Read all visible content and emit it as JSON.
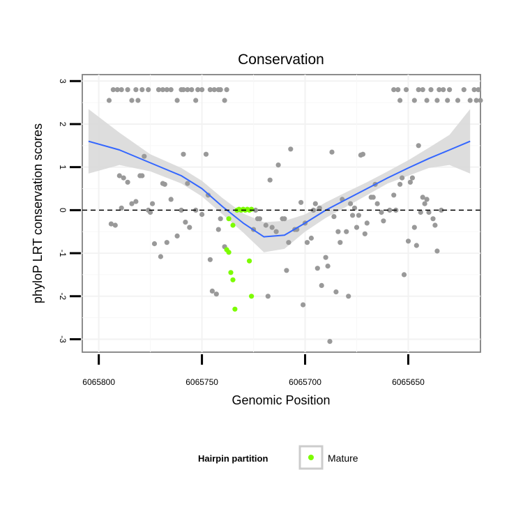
{
  "chart_data": {
    "type": "scatter",
    "title": "Conservation",
    "xlabel": "Genomic Position",
    "ylabel": "phyloP LRT conservation scores",
    "x_reversed": true,
    "xlim": [
      6065808,
      6065615
    ],
    "ylim": [
      -3.3,
      3.15
    ],
    "x_ticks": [
      6065800,
      6065750,
      6065700,
      6065650
    ],
    "x_tick_labels": [
      "6065800",
      "6065750",
      "6065700",
      "6065650"
    ],
    "y_ticks": [
      3,
      2,
      1,
      0,
      -1,
      -2,
      -3
    ],
    "y_tick_labels": [
      "3",
      "2",
      "1",
      "0",
      "-1",
      "-2",
      "-3"
    ],
    "grid": true,
    "reference_line": {
      "y": 0,
      "style": "dashed"
    },
    "legend": {
      "title": "Hairpin partition",
      "position": "bottom",
      "entries": [
        {
          "label": "Mature",
          "color": "#7cfc00"
        }
      ]
    },
    "colors": {
      "other": "#999999",
      "mature": "#7cfc00",
      "smooth": "#3366ff",
      "band": "#d9d9d9"
    },
    "series": [
      {
        "group": "other",
        "points": [
          [
            6065795,
            2.55
          ],
          [
            6065793,
            2.8
          ],
          [
            6065791,
            2.8
          ],
          [
            6065789,
            2.8
          ],
          [
            6065786,
            2.8
          ],
          [
            6065784,
            2.55
          ],
          [
            6065782,
            2.8
          ],
          [
            6065781,
            2.55
          ],
          [
            6065779,
            2.8
          ],
          [
            6065776,
            2.8
          ],
          [
            6065771,
            2.8
          ],
          [
            6065769,
            2.8
          ],
          [
            6065767,
            2.8
          ],
          [
            6065765,
            2.8
          ],
          [
            6065762,
            2.55
          ],
          [
            6065760,
            2.8
          ],
          [
            6065759,
            2.8
          ],
          [
            6065757,
            2.8
          ],
          [
            6065755,
            2.8
          ],
          [
            6065753,
            2.55
          ],
          [
            6065752,
            2.8
          ],
          [
            6065750,
            2.8
          ],
          [
            6065746,
            2.8
          ],
          [
            6065744,
            2.8
          ],
          [
            6065742,
            2.8
          ],
          [
            6065741,
            2.8
          ],
          [
            6065739,
            2.55
          ],
          [
            6065738,
            2.8
          ],
          [
            6065657,
            2.8
          ],
          [
            6065655,
            2.8
          ],
          [
            6065654,
            2.55
          ],
          [
            6065651,
            2.8
          ],
          [
            6065647,
            2.55
          ],
          [
            6065645,
            2.8
          ],
          [
            6065643,
            2.8
          ],
          [
            6065641,
            2.55
          ],
          [
            6065639,
            2.8
          ],
          [
            6065636,
            2.55
          ],
          [
            6065635,
            2.8
          ],
          [
            6065633,
            2.8
          ],
          [
            6065631,
            2.55
          ],
          [
            6065630,
            2.8
          ],
          [
            6065626,
            2.55
          ],
          [
            6065623,
            2.8
          ],
          [
            6065620,
            2.55
          ],
          [
            6065617,
            2.55
          ],
          [
            6065618,
            2.8
          ],
          [
            6065616,
            2.8
          ],
          [
            6065615,
            2.55
          ],
          [
            6065794,
            -0.32
          ],
          [
            6065792,
            -0.35
          ],
          [
            6065790,
            0.8
          ],
          [
            6065789,
            0.05
          ],
          [
            6065788,
            0.75
          ],
          [
            6065786,
            0.65
          ],
          [
            6065784,
            0.15
          ],
          [
            6065782,
            0.2
          ],
          [
            6065780,
            0.8
          ],
          [
            6065779,
            0.8
          ],
          [
            6065778,
            1.25
          ],
          [
            6065776,
            0.0
          ],
          [
            6065775,
            -0.05
          ],
          [
            6065774,
            0.15
          ],
          [
            6065773,
            -0.78
          ],
          [
            6065770,
            -1.08
          ],
          [
            6065769,
            0.62
          ],
          [
            6065768,
            0.6
          ],
          [
            6065767,
            -0.75
          ],
          [
            6065765,
            0.25
          ],
          [
            6065762,
            -0.6
          ],
          [
            6065760,
            0.0
          ],
          [
            6065759,
            1.3
          ],
          [
            6065758,
            -0.28
          ],
          [
            6065757,
            0.62
          ],
          [
            6065756,
            -0.4
          ],
          [
            6065753,
            0.0
          ],
          [
            6065750,
            -0.1
          ],
          [
            6065748,
            1.3
          ],
          [
            6065747,
            0.35
          ],
          [
            6065746,
            -1.15
          ],
          [
            6065745,
            -1.88
          ],
          [
            6065743,
            -1.95
          ],
          [
            6065742,
            -0.45
          ],
          [
            6065741,
            -0.2
          ],
          [
            6065739,
            -0.85
          ],
          [
            6065725,
            -0.45
          ],
          [
            6065724,
            0.0
          ],
          [
            6065723,
            -0.2
          ],
          [
            6065722,
            -0.2
          ],
          [
            6065719,
            -0.35
          ],
          [
            6065718,
            -2.0
          ],
          [
            6065717,
            0.7
          ],
          [
            6065716,
            -0.4
          ],
          [
            6065714,
            -0.5
          ],
          [
            6065713,
            1.05
          ],
          [
            6065711,
            -0.2
          ],
          [
            6065710,
            -0.2
          ],
          [
            6065709,
            -1.4
          ],
          [
            6065708,
            -0.75
          ],
          [
            6065707,
            1.42
          ],
          [
            6065705,
            -0.45
          ],
          [
            6065704,
            -0.45
          ],
          [
            6065702,
            0.18
          ],
          [
            6065701,
            -2.2
          ],
          [
            6065700,
            -0.3
          ],
          [
            6065699,
            -0.75
          ],
          [
            6065697,
            -0.65
          ],
          [
            6065696,
            0.0
          ],
          [
            6065695,
            0.15
          ],
          [
            6065694,
            -1.35
          ],
          [
            6065693,
            0.05
          ],
          [
            6065692,
            -1.75
          ],
          [
            6065690,
            -1.1
          ],
          [
            6065689,
            -1.3
          ],
          [
            6065688,
            -3.05
          ],
          [
            6065687,
            1.35
          ],
          [
            6065686,
            -0.15
          ],
          [
            6065685,
            -1.9
          ],
          [
            6065684,
            -0.5
          ],
          [
            6065683,
            -0.75
          ],
          [
            6065682,
            0.25
          ],
          [
            6065680,
            -0.5
          ],
          [
            6065679,
            -2.0
          ],
          [
            6065678,
            0.15
          ],
          [
            6065677,
            -0.12
          ],
          [
            6065676,
            0.05
          ],
          [
            6065675,
            -0.4
          ],
          [
            6065674,
            -0.12
          ],
          [
            6065673,
            1.28
          ],
          [
            6065672,
            1.3
          ],
          [
            6065671,
            -0.55
          ],
          [
            6065670,
            -0.3
          ],
          [
            6065668,
            0.3
          ],
          [
            6065667,
            0.3
          ],
          [
            6065666,
            0.6
          ],
          [
            6065665,
            0.15
          ],
          [
            6065663,
            -0.05
          ],
          [
            6065662,
            -0.25
          ],
          [
            6065659,
            0.0
          ],
          [
            6065657,
            0.35
          ],
          [
            6065656,
            0.0
          ],
          [
            6065654,
            0.6
          ],
          [
            6065653,
            0.75
          ],
          [
            6065652,
            -1.5
          ],
          [
            6065650,
            -0.72
          ],
          [
            6065649,
            0.65
          ],
          [
            6065648,
            0.75
          ],
          [
            6065647,
            -0.4
          ],
          [
            6065646,
            -0.82
          ],
          [
            6065645,
            1.5
          ],
          [
            6065644,
            -0.05
          ],
          [
            6065643,
            0.3
          ],
          [
            6065642,
            0.15
          ],
          [
            6065641,
            0.25
          ],
          [
            6065640,
            -0.05
          ],
          [
            6065638,
            -0.2
          ],
          [
            6065637,
            -0.35
          ],
          [
            6065636,
            -0.95
          ],
          [
            6065634,
            0.0
          ]
        ]
      },
      {
        "group": "mature",
        "points": [
          [
            6065737,
            -0.2
          ],
          [
            6065735,
            -0.35
          ],
          [
            6065733,
            0.0
          ],
          [
            6065732,
            0.02
          ],
          [
            6065731,
            0.0
          ],
          [
            6065730,
            0.02
          ],
          [
            6065729,
            0.0
          ],
          [
            6065728,
            0.02
          ],
          [
            6065727,
            0.0
          ],
          [
            6065726,
            0.02
          ],
          [
            6065738,
            -0.92
          ],
          [
            6065737,
            -0.98
          ],
          [
            6065736,
            -1.45
          ],
          [
            6065735,
            -1.62
          ],
          [
            6065734,
            -2.3
          ],
          [
            6065727,
            -1.18
          ],
          [
            6065726,
            -2.0
          ]
        ]
      }
    ],
    "smooth_line": {
      "x": [
        6065805,
        6065790,
        6065775,
        6065760,
        6065750,
        6065740,
        6065730,
        6065720,
        6065710,
        6065700,
        6065690,
        6065680,
        6065670,
        6065660,
        6065650,
        6065640,
        6065630,
        6065620
      ],
      "y": [
        1.6,
        1.4,
        1.1,
        0.8,
        0.5,
        0.08,
        -0.3,
        -0.62,
        -0.58,
        -0.3,
        0.0,
        0.25,
        0.5,
        0.75,
        0.98,
        1.2,
        1.4,
        1.6
      ],
      "lower": [
        0.85,
        1.05,
        0.9,
        0.62,
        0.32,
        -0.1,
        -0.52,
        -0.98,
        -0.9,
        -0.5,
        -0.18,
        0.08,
        0.35,
        0.62,
        0.8,
        0.98,
        1.05,
        0.85
      ],
      "upper": [
        2.35,
        1.8,
        1.3,
        0.98,
        0.68,
        0.28,
        -0.08,
        -0.28,
        -0.25,
        -0.1,
        0.18,
        0.42,
        0.65,
        0.9,
        1.16,
        1.45,
        1.75,
        2.35
      ]
    }
  }
}
